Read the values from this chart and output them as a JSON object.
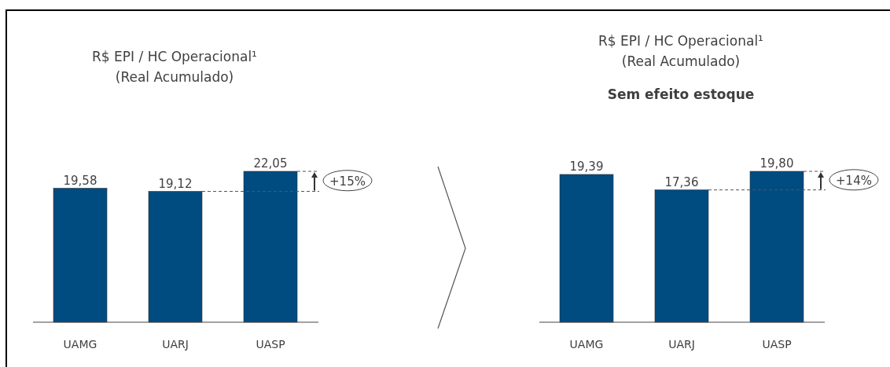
{
  "chart_data": [
    {
      "type": "bar",
      "title": "R$ EPI / HC Operacional¹\n(Real Acumulado)",
      "categories": [
        "UAMG",
        "UARJ",
        "UASP"
      ],
      "values": [
        19.58,
        19.12,
        22.05
      ],
      "value_labels": [
        "19,58",
        "19,12",
        "22,05"
      ],
      "color": "#004b80",
      "annotations": [
        "+15%"
      ]
    },
    {
      "type": "bar",
      "title": "R$ EPI / HC Operacional¹\n(Real Acumulado)",
      "subtitle": "Sem efeito estoque",
      "categories": [
        "UAMG",
        "UARJ",
        "UASP"
      ],
      "values": [
        19.39,
        17.36,
        19.8
      ],
      "value_labels": [
        "19,39",
        "17,36",
        "19,80"
      ],
      "color": "#004b80",
      "annotations": [
        "+14%"
      ]
    }
  ]
}
